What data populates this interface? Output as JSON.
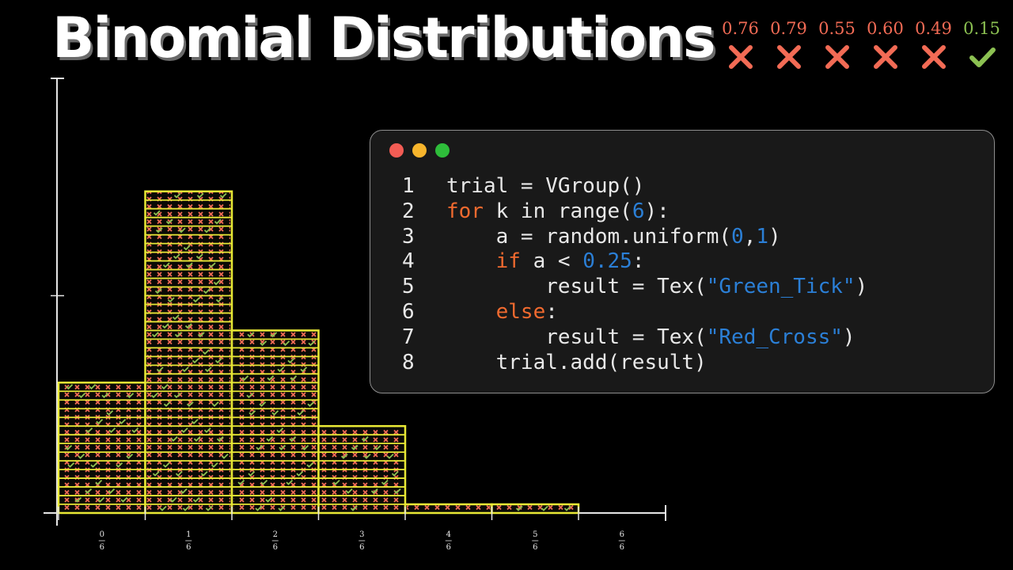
{
  "title": "Binomial Distributions",
  "colors": {
    "cross": "#f26b55",
    "tick": "#8cc152",
    "bar_outline": "#e8e835",
    "keyword": "#f16a2f",
    "number": "#2b7fd6"
  },
  "trials": [
    {
      "value": "0.76",
      "result": "cross-icon"
    },
    {
      "value": "0.79",
      "result": "cross-icon"
    },
    {
      "value": "0.55",
      "result": "cross-icon"
    },
    {
      "value": "0.60",
      "result": "cross-icon"
    },
    {
      "value": "0.49",
      "result": "cross-icon"
    },
    {
      "value": "0.15",
      "result": "tick-icon"
    }
  ],
  "code": {
    "lines": [
      {
        "n": "1",
        "text": "trial = VGroup()"
      },
      {
        "n": "2",
        "text": "for k in range(6):"
      },
      {
        "n": "3",
        "text": "    a = random.uniform(0,1)"
      },
      {
        "n": "4",
        "text": "    if a < 0.25:"
      },
      {
        "n": "5",
        "text": "        result = Tex(\"Green_Tick\")"
      },
      {
        "n": "6",
        "text": "    else:"
      },
      {
        "n": "7",
        "text": "        result = Tex(\"Red_Cross\")"
      },
      {
        "n": "8",
        "text": "    trial.add(result)"
      }
    ]
  },
  "chart_data": {
    "type": "bar",
    "categories": [
      "0/6",
      "1/6",
      "2/6",
      "3/6",
      "4/6",
      "5/6",
      "6/6"
    ],
    "tick_labels": [
      {
        "num": "0",
        "den": "6"
      },
      {
        "num": "1",
        "den": "6"
      },
      {
        "num": "2",
        "den": "6"
      },
      {
        "num": "3",
        "den": "6"
      },
      {
        "num": "4",
        "den": "6"
      },
      {
        "num": "5",
        "den": "6"
      },
      {
        "num": "6",
        "den": "6"
      }
    ],
    "values": [
      15,
      37,
      21,
      10,
      1,
      1,
      0
    ],
    "ylim": [
      0,
      50
    ],
    "y_ticks": [
      25,
      50
    ],
    "title": "",
    "xlabel": "",
    "ylabel": ""
  }
}
